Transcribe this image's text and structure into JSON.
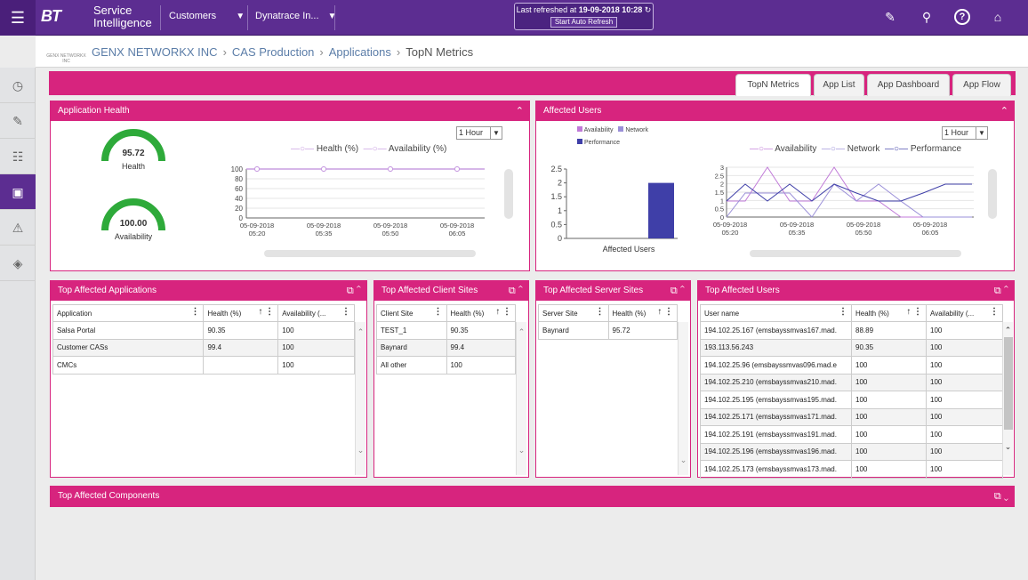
{
  "topbar": {
    "menu_icon": "hamburger-icon",
    "logo": "BT",
    "brand_line1": "Service",
    "brand_line2": "Intelligence",
    "customers_label": "Customers",
    "app_label": "Dynatrace In...",
    "refresh_prefix": "Last refreshed at",
    "refresh_time": "19-09-2018 10:28",
    "auto_refresh_label": "Start Auto Refresh",
    "icons": [
      "edit-icon",
      "search-icon",
      "help-icon",
      "home-icon"
    ]
  },
  "breadcrumb": {
    "logo_text": "GENX NETWORKX INC",
    "items": [
      "GENX NETWORKX INC",
      "CAS Production",
      "Applications",
      "TopN Metrics"
    ]
  },
  "leftnav": {
    "items": [
      "dashboard-icon",
      "report-icon",
      "topology-icon",
      "applications-icon",
      "alert-icon",
      "diamond-icon"
    ],
    "active_index": 3
  },
  "tabs": [
    "TopN Metrics",
    "App List",
    "App Dashboard",
    "App Flow"
  ],
  "app_health": {
    "title": "Application Health",
    "health_value": "95.72",
    "health_label": "Health",
    "availability_value": "100.00",
    "availability_label": "Availability",
    "range": "1 Hour",
    "legend": [
      "Health (%)",
      "Availability (%)"
    ],
    "colors": {
      "gauge": "#2eaa3a",
      "line": "#c79ae0"
    },
    "chart_data": {
      "type": "line",
      "x": [
        "05-09-2018 05:20",
        "05-09-2018 05:35",
        "05-09-2018 05:50",
        "05-09-2018 06:05"
      ],
      "yticks": [
        "100",
        "80",
        "60",
        "40",
        "20",
        "0"
      ],
      "ylim": [
        0,
        100
      ],
      "series": [
        {
          "name": "Health (%)",
          "values": [
            100,
            100,
            100,
            100
          ]
        },
        {
          "name": "Availability (%)",
          "values": [
            100,
            100,
            100,
            100
          ]
        }
      ]
    }
  },
  "affected_users": {
    "title": "Affected Users",
    "bar_legend": [
      "Availability",
      "Network",
      "Performance"
    ],
    "range": "1 Hour",
    "line_legend": [
      "Availability",
      "Network",
      "Performance"
    ],
    "colors": {
      "availability": "#c07ad8",
      "network": "#9a8fd8",
      "performance": "#3f3fa8"
    },
    "bar_chart": {
      "type": "bar",
      "categories": [
        "Affected Users"
      ],
      "values": [
        2
      ],
      "yticks": [
        "2.5",
        "2",
        "1.5",
        "1",
        "0.5",
        "0"
      ],
      "ylim": [
        0,
        2.5
      ]
    },
    "line_chart": {
      "type": "line",
      "x": [
        "05-09-2018 05:20",
        "05-09-2018 05:35",
        "05-09-2018 05:50",
        "05-09-2018 06:05"
      ],
      "yticks": [
        "3",
        "2.5",
        "2",
        "1.5",
        "1",
        "0.5",
        "0"
      ],
      "ylim": [
        0,
        3
      ]
    }
  },
  "top_apps": {
    "title": "Top Affected Applications",
    "columns": [
      "Application",
      "Health (%)",
      "Availability (..."
    ],
    "rows": [
      [
        "Salsa Portal",
        "90.35",
        "100"
      ],
      [
        "Customer CASs",
        "99.4",
        "100"
      ],
      [
        "CMCs",
        "",
        "100"
      ]
    ]
  },
  "top_client_sites": {
    "title": "Top Affected Client Sites",
    "columns": [
      "Client Site",
      "Health (%)"
    ],
    "rows": [
      [
        "TEST_1",
        "90.35"
      ],
      [
        "Baynard",
        "99.4"
      ],
      [
        "All other",
        "100"
      ]
    ]
  },
  "top_server_sites": {
    "title": "Top Affected Server Sites",
    "columns": [
      "Server Site",
      "Health (%)"
    ],
    "rows": [
      [
        "Baynard",
        "95.72"
      ]
    ]
  },
  "top_users": {
    "title": "Top Affected Users",
    "columns": [
      "User name",
      "Health (%)",
      "Availability (..."
    ],
    "rows": [
      [
        "194.102.25.167 (emsbayssmvas167.mad.",
        "88.89",
        "100"
      ],
      [
        "193.113.56.243",
        "90.35",
        "100"
      ],
      [
        "194.102.25.96 (emsbayssmvas096.mad.e",
        "100",
        "100"
      ],
      [
        "194.102.25.210 (emsbayssmvas210.mad.",
        "100",
        "100"
      ],
      [
        "194.102.25.195 (emsbayssmvas195.mad.",
        "100",
        "100"
      ],
      [
        "194.102.25.171 (emsbayssmvas171.mad.",
        "100",
        "100"
      ],
      [
        "194.102.25.191 (emsbayssmvas191.mad.",
        "100",
        "100"
      ],
      [
        "194.102.25.196 (emsbayssmvas196.mad.",
        "100",
        "100"
      ],
      [
        "194.102.25.173 (emsbayssmvas173.mad.",
        "100",
        "100"
      ]
    ]
  },
  "top_components": {
    "title": "Top Affected Components"
  }
}
